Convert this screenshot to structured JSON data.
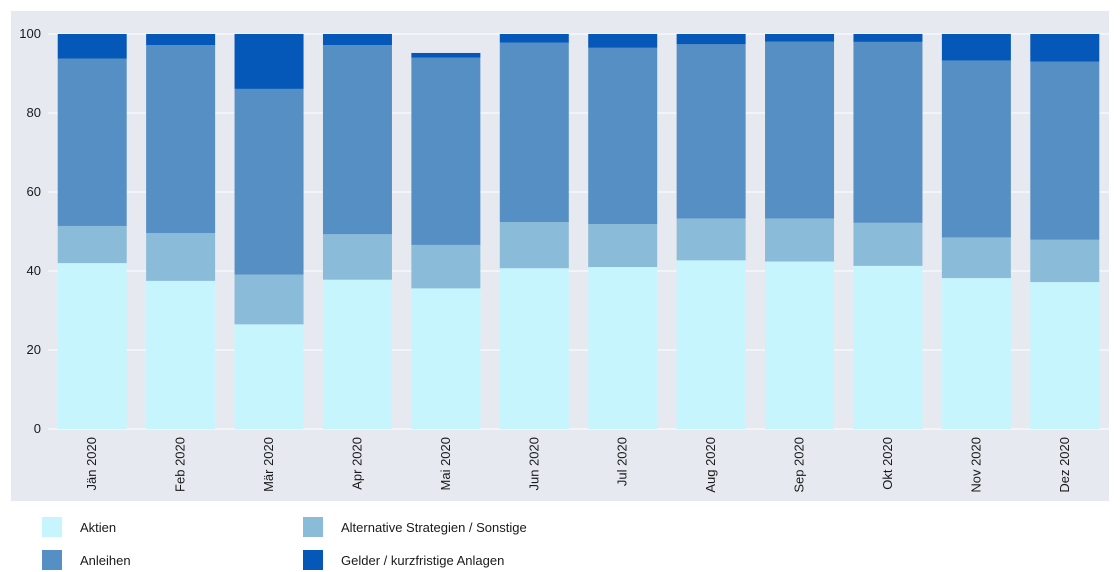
{
  "chart_data": {
    "type": "bar",
    "stacked": true,
    "categories": [
      "Jän 2020",
      "Feb 2020",
      "Mär 2020",
      "Apr 2020",
      "Mai 2020",
      "Jun 2020",
      "Jul 2020",
      "Aug 2020",
      "Sep 2020",
      "Okt 2020",
      "Nov 2020",
      "Dez 2020"
    ],
    "series": [
      {
        "name": "Aktien",
        "color": "#c6f5fd",
        "values": [
          42.0,
          37.5,
          26.5,
          37.8,
          35.6,
          40.7,
          41.0,
          42.7,
          42.4,
          41.3,
          38.2,
          37.2
        ]
      },
      {
        "name": "Alternative Strategien / Sonstige",
        "color": "#8abbd9",
        "values": [
          9.4,
          12.1,
          12.6,
          11.5,
          11.0,
          11.7,
          10.9,
          10.6,
          10.9,
          10.9,
          10.3,
          10.7
        ]
      },
      {
        "name": "Anleihen",
        "color": "#568fc3",
        "values": [
          42.4,
          47.6,
          47.0,
          47.9,
          47.4,
          45.4,
          44.6,
          44.1,
          44.8,
          45.8,
          44.8,
          45.1
        ]
      },
      {
        "name": "Gelder / kurzfristige Anlagen",
        "color": "#0558b7",
        "values": [
          6.2,
          2.8,
          13.9,
          2.8,
          1.2,
          2.2,
          3.5,
          2.6,
          1.9,
          2.0,
          6.7,
          7.0
        ]
      }
    ],
    "yticks": [
      0,
      20,
      40,
      60,
      80,
      100
    ],
    "ylim": [
      0,
      100
    ],
    "grid": true,
    "legend_position": "bottom-left",
    "title": "",
    "xlabel": "",
    "ylabel": ""
  }
}
